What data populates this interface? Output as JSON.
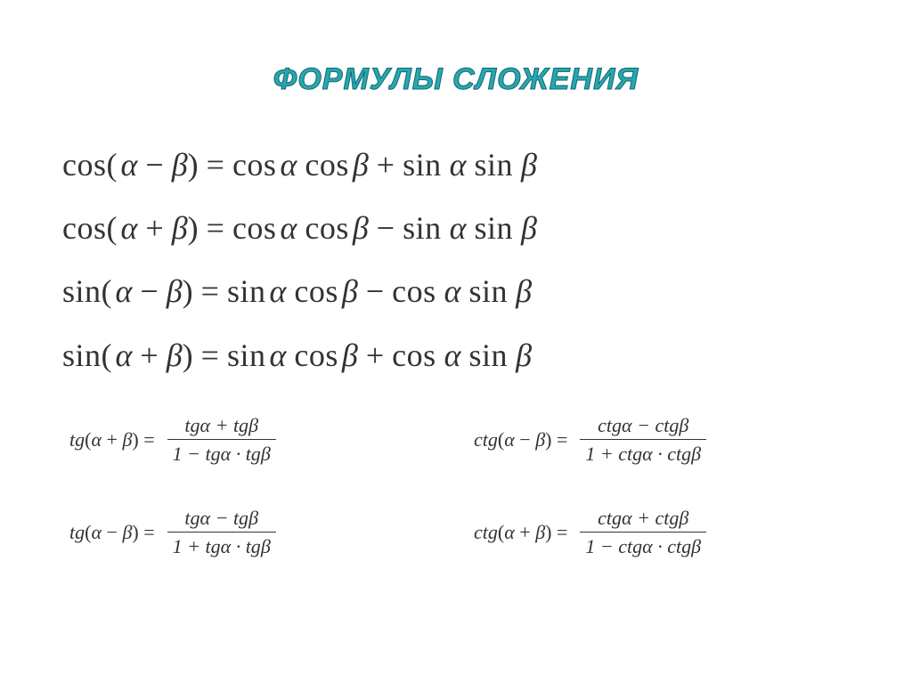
{
  "title": "ФОРМУЛЫ СЛОЖЕНИЯ",
  "colors": {
    "background": "#ffffff",
    "text": "#333333",
    "title_fill": "#2aa6b0",
    "title_stroke": "#0f6b74",
    "fraction_bar": "#333333"
  },
  "typography": {
    "title_fontsize_pt": 26,
    "title_font_family": "Arial",
    "title_weight": "900",
    "title_style": "italic",
    "body_font_family": "Times New Roman",
    "large_formula_fontsize_pt": 27,
    "small_formula_fontsize_pt": 17
  },
  "glyphs": {
    "alpha": "α",
    "beta": "β",
    "minus": "−",
    "plus": "+",
    "dot": "·",
    "eq": "="
  },
  "large_formulas": [
    {
      "fn_left": "cos",
      "op": "−",
      "rhs_t1_f1": "cos",
      "rhs_t1_f2": "cos",
      "rhs_op": "+",
      "rhs_t2_f1": "sin",
      "rhs_t2_f2": "sin"
    },
    {
      "fn_left": "cos",
      "op": "+",
      "rhs_t1_f1": "cos",
      "rhs_t1_f2": "cos",
      "rhs_op": "−",
      "rhs_t2_f1": "sin",
      "rhs_t2_f2": "sin"
    },
    {
      "fn_left": "sin",
      "op": "−",
      "rhs_t1_f1": "sin",
      "rhs_t1_f2": "cos",
      "rhs_op": "−",
      "rhs_t2_f1": "cos",
      "rhs_t2_f2": "sin"
    },
    {
      "fn_left": "sin",
      "op": "+",
      "rhs_t1_f1": "sin",
      "rhs_t1_f2": "cos",
      "rhs_op": "+",
      "rhs_t2_f1": "cos",
      "rhs_t2_f2": "sin"
    }
  ],
  "tan_formulas": {
    "top_left": {
      "fn": "tg",
      "op": "+",
      "num_op": "+",
      "den_lead": "1",
      "den_op": "−"
    },
    "top_right": {
      "fn": "ctg",
      "op": "−",
      "num_op": "−",
      "den_lead": "1",
      "den_op": "+"
    },
    "bottom_left": {
      "fn": "tg",
      "op": "−",
      "num_op": "−",
      "den_lead": "1",
      "den_op": "+"
    },
    "bottom_right": {
      "fn": "ctg",
      "op": "+",
      "num_op": "+",
      "den_lead": "1",
      "den_op": "−"
    }
  }
}
